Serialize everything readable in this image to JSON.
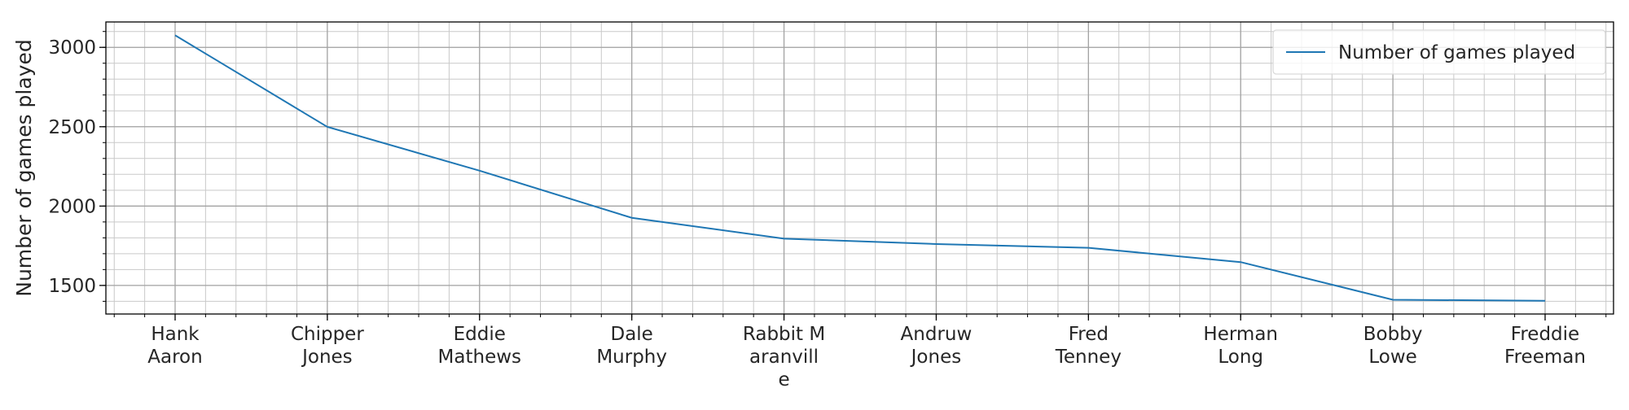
{
  "chart_data": {
    "type": "line",
    "title": "",
    "xlabel": "",
    "ylabel": "Number of games played",
    "categories": [
      "Hank Aaron",
      "Chipper Jones",
      "Eddie Mathews",
      "Dale Murphy",
      "Rabbit Maranville",
      "Andruw Jones",
      "Fred Tenney",
      "Herman Long",
      "Bobby Lowe",
      "Freddie Freeman"
    ],
    "category_tick_lines": [
      [
        "Hank",
        "Aaron"
      ],
      [
        "Chipper",
        "Jones"
      ],
      [
        "Eddie",
        "Mathews"
      ],
      [
        "Dale",
        "Murphy"
      ],
      [
        "Rabbit M",
        "aranvill",
        "e"
      ],
      [
        "Andruw",
        "Jones"
      ],
      [
        "Fred",
        "Tenney"
      ],
      [
        "Herman",
        "Long"
      ],
      [
        "Bobby",
        "Lowe"
      ],
      [
        "Freddie",
        "Freeman"
      ]
    ],
    "series": [
      {
        "name": "Number of games played",
        "values": [
          3076,
          2499,
          2223,
          1926,
          1795,
          1761,
          1737,
          1647,
          1410,
          1403
        ],
        "color": "#1f77b4"
      }
    ],
    "ylim": [
      1320,
      3160
    ],
    "yticks": [
      1500,
      2000,
      2500,
      3000
    ],
    "grid": true,
    "minor_grid": true,
    "legend_position": "top-right"
  }
}
